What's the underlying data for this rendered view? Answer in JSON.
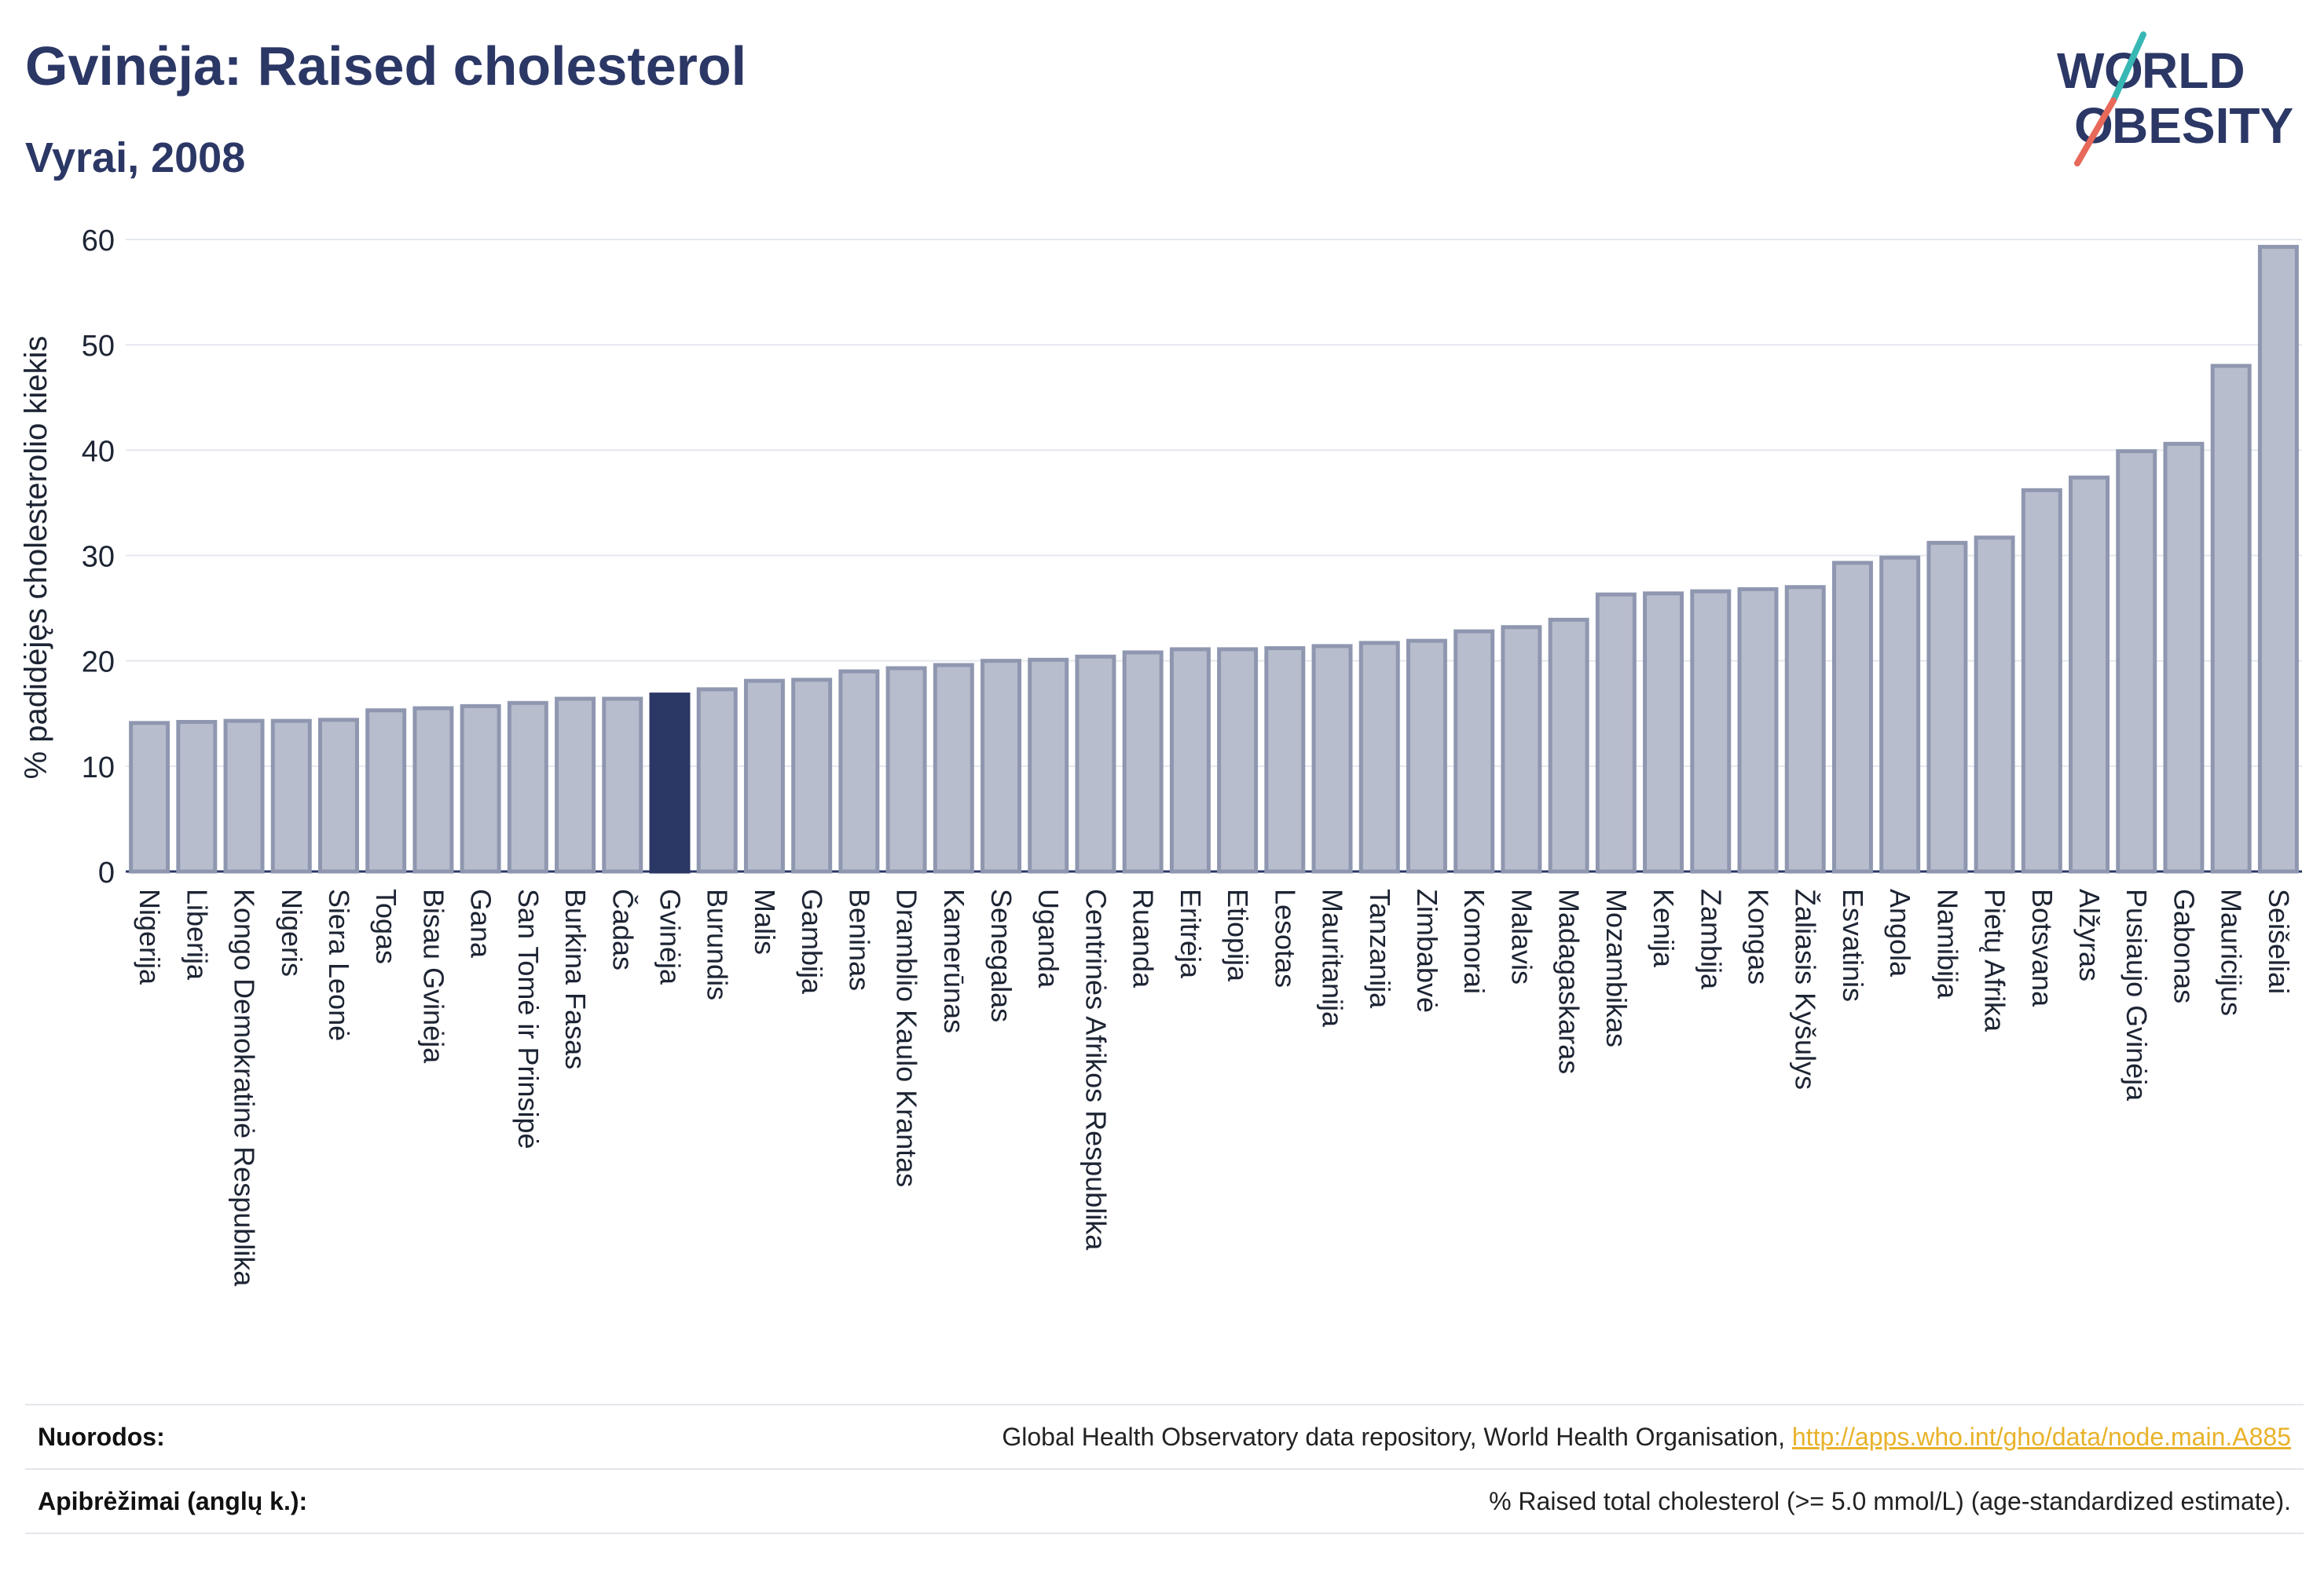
{
  "header": {
    "title": "Gvinėja: Raised cholesterol",
    "subtitle": "Vyrai, 2008",
    "logo_text": "WORLD OBESITY"
  },
  "colors": {
    "bar": "#b8bdcd",
    "bar_border": "#8f97b0",
    "highlight": "#2b3765",
    "title": "#2b3765",
    "link": "#e8b22a",
    "logo_slash_teal": "#38b8b4",
    "logo_slash_red": "#e8685a"
  },
  "chart_data": {
    "type": "bar",
    "title": "Gvinėja: Raised cholesterol",
    "subtitle": "Vyrai, 2008",
    "xlabel": "",
    "ylabel": "% padidėjęs cholesterolio kiekis",
    "ylim": [
      0,
      60
    ],
    "yticks": [
      0,
      10,
      20,
      30,
      40,
      50,
      60
    ],
    "grid": true,
    "highlight": "Gvinėja",
    "categories": [
      "Nigerija",
      "Liberija",
      "Kongo Demokratinė Respublika",
      "Nigeris",
      "Siera Leonė",
      "Togas",
      "Bisau Gvinėja",
      "Gana",
      "San Tomė ir Prinsipė",
      "Burkina Fasas",
      "Čadas",
      "Gvinėja",
      "Burundis",
      "Malis",
      "Gambija",
      "Beninas",
      "Dramblio Kaulo Krantas",
      "Kamerūnas",
      "Senegalas",
      "Uganda",
      "Centrinės Afrikos Respublika",
      "Ruanda",
      "Eritrėja",
      "Etiopija",
      "Lesotas",
      "Mauritanija",
      "Tanzanija",
      "Zimbabvė",
      "Komorai",
      "Malavis",
      "Madagaskaras",
      "Mozambikas",
      "Kenija",
      "Zambija",
      "Kongas",
      "Žaliasis Kyšulys",
      "Esvatinis",
      "Angola",
      "Namibija",
      "Pietų Afrika",
      "Botsvana",
      "Alžyras",
      "Pusiaujo Gvinėja",
      "Gabonas",
      "Mauricijus",
      "Seišeliai"
    ],
    "values": [
      14.1,
      14.2,
      14.3,
      14.3,
      14.4,
      15.3,
      15.5,
      15.7,
      16.0,
      16.4,
      16.4,
      16.8,
      17.3,
      18.1,
      18.2,
      19.0,
      19.3,
      19.6,
      20.0,
      20.1,
      20.4,
      20.8,
      21.1,
      21.1,
      21.2,
      21.4,
      21.7,
      21.9,
      22.8,
      23.2,
      23.9,
      26.3,
      26.4,
      26.6,
      26.8,
      27.0,
      29.3,
      29.8,
      31.2,
      31.7,
      36.2,
      37.4,
      39.9,
      40.6,
      48.0,
      59.3
    ]
  },
  "footer": {
    "sources_label": "Nuorodos:",
    "sources_text": "Global Health Observatory data repository, World Health Organisation, ",
    "sources_link": "http://apps.who.int/gho/data/node.main.A885",
    "definitions_label": "Apibrėžimai (anglų k.):",
    "definitions_text": "% Raised total cholesterol (>= 5.0 mmol/L) (age-standardized estimate)."
  }
}
